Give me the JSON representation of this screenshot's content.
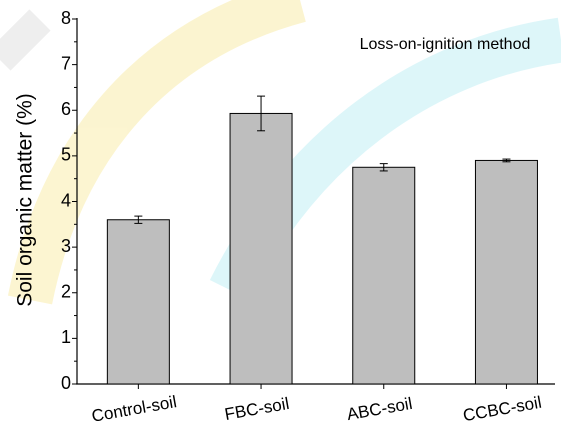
{
  "chart_data": {
    "type": "bar",
    "annotation": "Loss-on-ignition method",
    "y_label": "Soil organic matter (%)",
    "categories": [
      "Control-soil",
      "FBC-soil",
      "ABC-soil",
      "CCBC-soil"
    ],
    "values": [
      3.6,
      5.93,
      4.75,
      4.9
    ],
    "errors": [
      0.08,
      0.38,
      0.08,
      0.03
    ],
    "color": "#bebebe",
    "ylim": [
      0,
      8
    ],
    "yticks": [
      0,
      1,
      2,
      3,
      4,
      5,
      6,
      7,
      8
    ],
    "grid": false
  }
}
